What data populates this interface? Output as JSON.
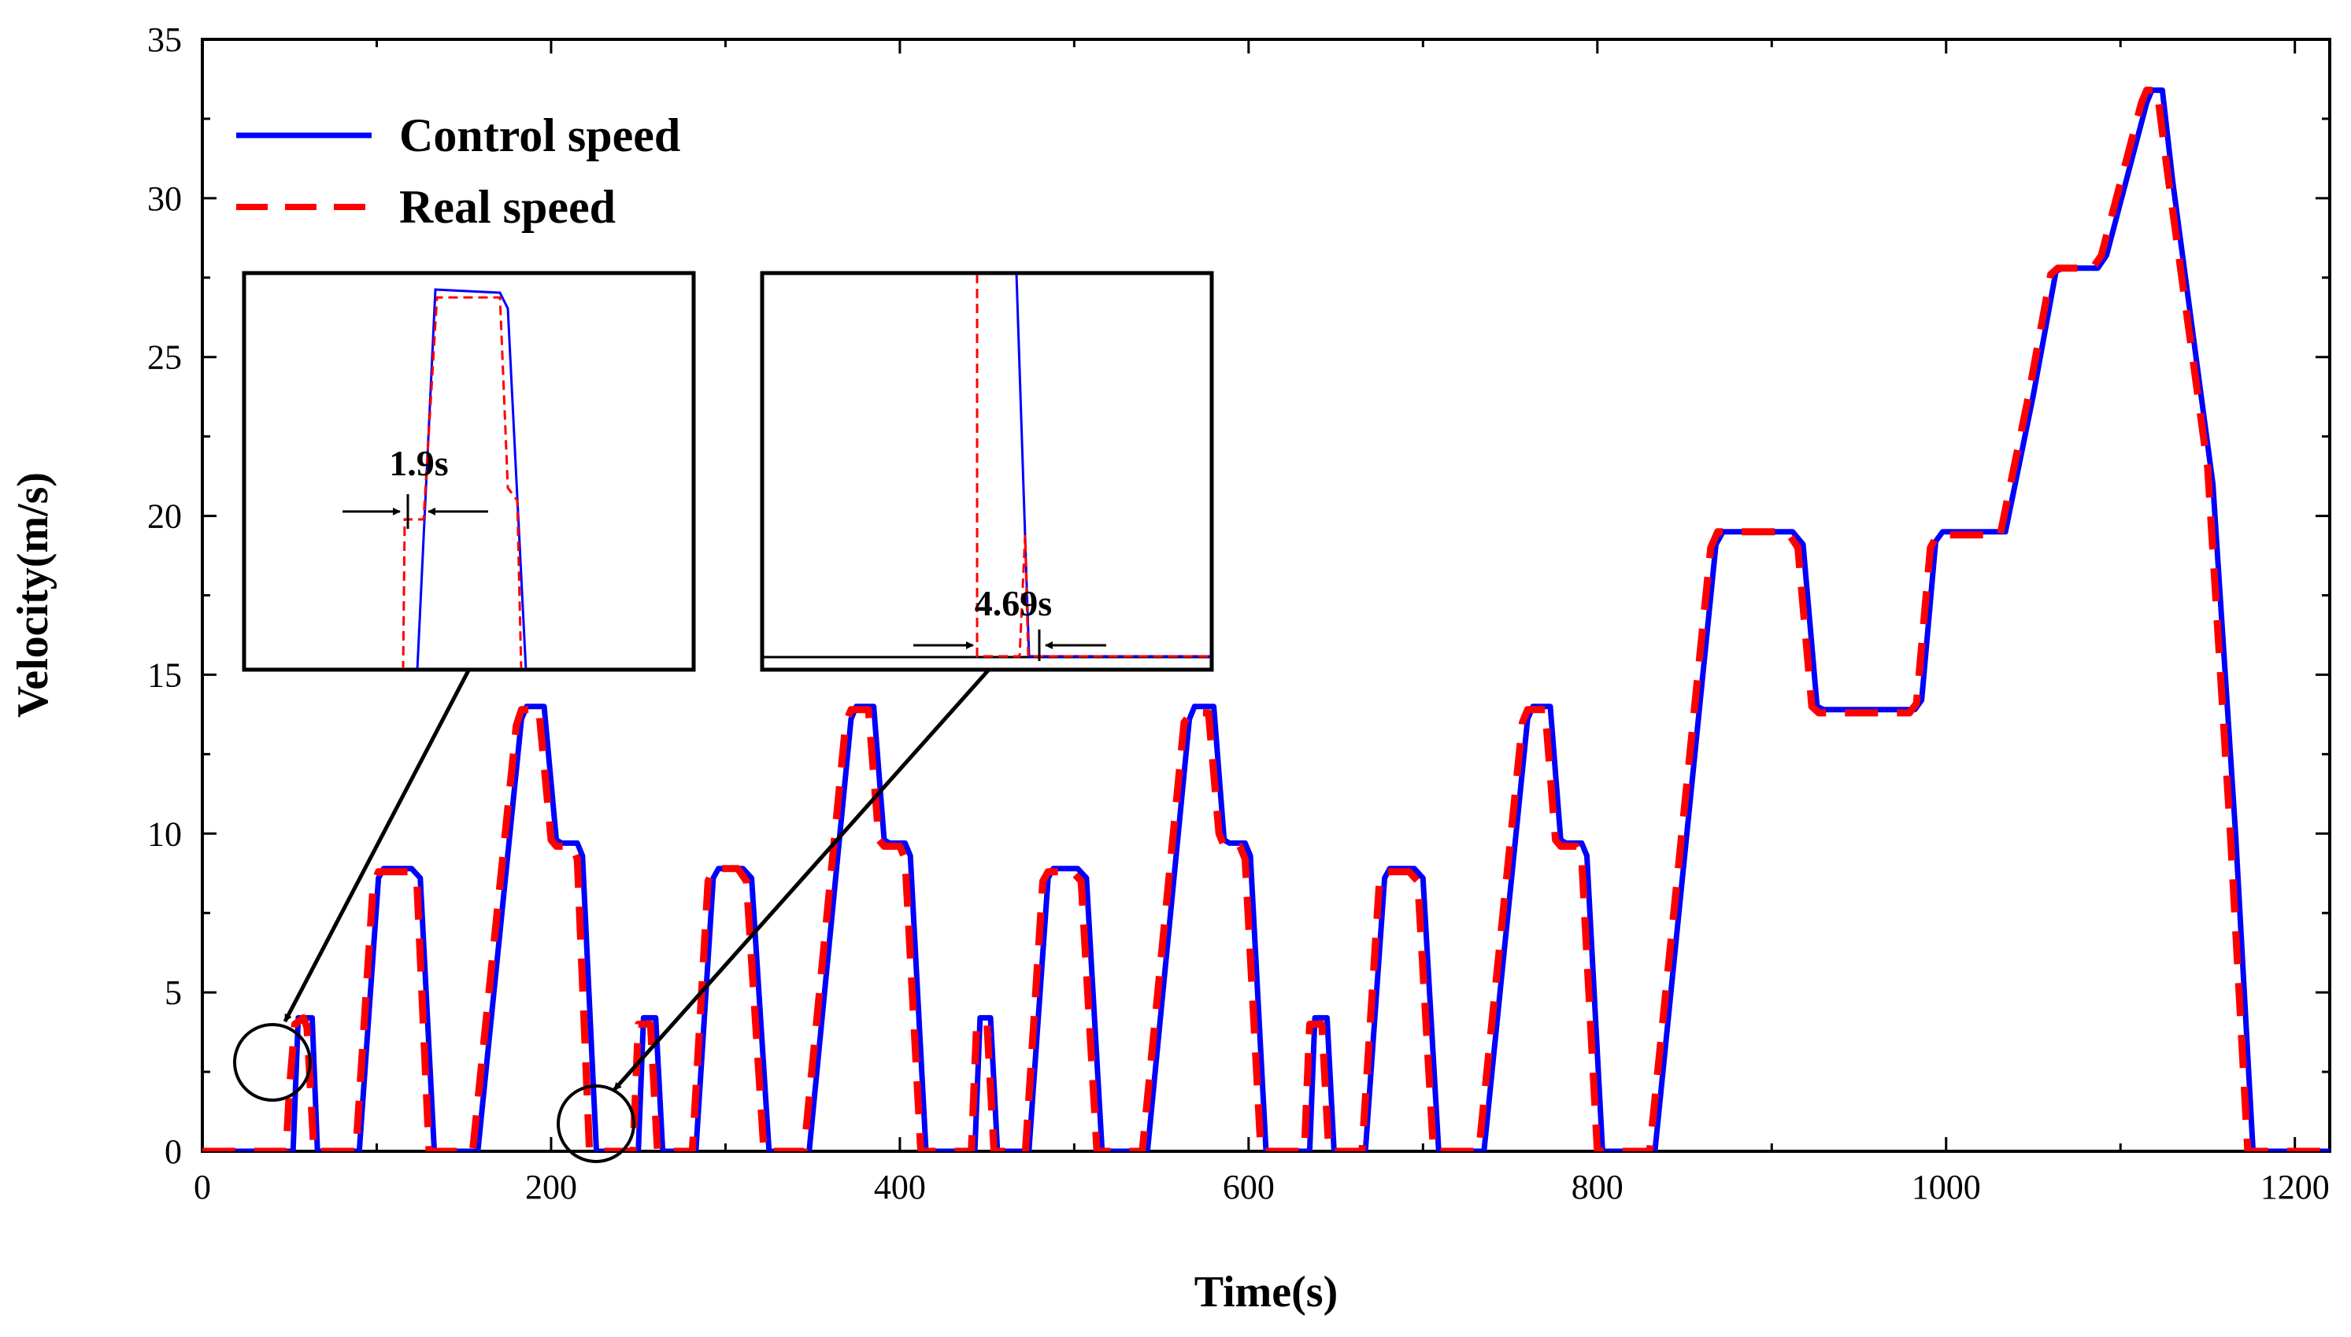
{
  "chart_data": {
    "type": "line",
    "title": "",
    "xlabel": "Time(s)",
    "ylabel": "Velocity(m/s)",
    "xlim": [
      0,
      1220
    ],
    "ylim": [
      0,
      35
    ],
    "xticks": [
      0,
      200,
      400,
      600,
      800,
      1000,
      1200
    ],
    "yticks": [
      0,
      5,
      10,
      15,
      20,
      25,
      30,
      35
    ],
    "grid": false,
    "legend_position": "top-left",
    "series": [
      {
        "name": "Control speed",
        "color": "#0000ff",
        "style": "solid",
        "points": [
          [
            0,
            0
          ],
          [
            52,
            0
          ],
          [
            55,
            4.2
          ],
          [
            63,
            4.2
          ],
          [
            66,
            0
          ],
          [
            90,
            0
          ],
          [
            101,
            8.6
          ],
          [
            104,
            8.9
          ],
          [
            120,
            8.9
          ],
          [
            125,
            8.6
          ],
          [
            133,
            0
          ],
          [
            158,
            0
          ],
          [
            183,
            13.6
          ],
          [
            186,
            14
          ],
          [
            196,
            14
          ],
          [
            203,
            9.8
          ],
          [
            206,
            9.7
          ],
          [
            215,
            9.7
          ],
          [
            218,
            9.3
          ],
          [
            226,
            0
          ],
          [
            250,
            0
          ],
          [
            253,
            4.2
          ],
          [
            260,
            4.2
          ],
          [
            264,
            0
          ],
          [
            283,
            0
          ],
          [
            293,
            8.6
          ],
          [
            296,
            8.9
          ],
          [
            310,
            8.9
          ],
          [
            315,
            8.6
          ],
          [
            325,
            0
          ],
          [
            348,
            0
          ],
          [
            372,
            13.6
          ],
          [
            375,
            14
          ],
          [
            385,
            14
          ],
          [
            391,
            9.8
          ],
          [
            394,
            9.7
          ],
          [
            403,
            9.7
          ],
          [
            406,
            9.3
          ],
          [
            415,
            0
          ],
          [
            443,
            0
          ],
          [
            446,
            4.2
          ],
          [
            452,
            4.2
          ],
          [
            456,
            0
          ],
          [
            474,
            0
          ],
          [
            485,
            8.6
          ],
          [
            488,
            8.9
          ],
          [
            502,
            8.9
          ],
          [
            507,
            8.6
          ],
          [
            516,
            0
          ],
          [
            542,
            0
          ],
          [
            566,
            13.6
          ],
          [
            569,
            14
          ],
          [
            580,
            14
          ],
          [
            586,
            9.8
          ],
          [
            589,
            9.7
          ],
          [
            598,
            9.7
          ],
          [
            601,
            9.3
          ],
          [
            610,
            0
          ],
          [
            635,
            0
          ],
          [
            638,
            4.2
          ],
          [
            645,
            4.2
          ],
          [
            649,
            0
          ],
          [
            667,
            0
          ],
          [
            678,
            8.6
          ],
          [
            681,
            8.9
          ],
          [
            695,
            8.9
          ],
          [
            700,
            8.6
          ],
          [
            709,
            0
          ],
          [
            735,
            0
          ],
          [
            760,
            13.6
          ],
          [
            763,
            14
          ],
          [
            773,
            14
          ],
          [
            779,
            9.8
          ],
          [
            782,
            9.7
          ],
          [
            791,
            9.7
          ],
          [
            794,
            9.3
          ],
          [
            803,
            0
          ],
          [
            833,
            0
          ],
          [
            868,
            19.1
          ],
          [
            872,
            19.5
          ],
          [
            912,
            19.5
          ],
          [
            918,
            19.1
          ],
          [
            926,
            14
          ],
          [
            930,
            13.9
          ],
          [
            982,
            13.9
          ],
          [
            986,
            14.2
          ],
          [
            994,
            19.2
          ],
          [
            998,
            19.5
          ],
          [
            1034,
            19.5
          ],
          [
            1050,
            23.8
          ],
          [
            1063,
            27.7
          ],
          [
            1067,
            27.8
          ],
          [
            1087,
            27.8
          ],
          [
            1092,
            28.2
          ],
          [
            1115,
            33
          ],
          [
            1118,
            33.4
          ],
          [
            1124,
            33.4
          ],
          [
            1130,
            30.5
          ],
          [
            1153,
            21
          ],
          [
            1166,
            10
          ],
          [
            1173,
            3
          ],
          [
            1176,
            0
          ],
          [
            1220,
            0
          ]
        ]
      },
      {
        "name": "Real speed",
        "color": "#ff0000",
        "style": "dashed",
        "points": [
          [
            0,
            0
          ],
          [
            48,
            0
          ],
          [
            50,
            2
          ],
          [
            53,
            4.0
          ],
          [
            58,
            4.2
          ],
          [
            60,
            3.9
          ],
          [
            64,
            0
          ],
          [
            88,
            0
          ],
          [
            98,
            8.4
          ],
          [
            101,
            8.8
          ],
          [
            118,
            8.8
          ],
          [
            123,
            8.5
          ],
          [
            130,
            0
          ],
          [
            155,
            0
          ],
          [
            180,
            13.4
          ],
          [
            183,
            13.9
          ],
          [
            193,
            13.9
          ],
          [
            200,
            9.8
          ],
          [
            203,
            9.6
          ],
          [
            212,
            9.6
          ],
          [
            215,
            9.2
          ],
          [
            222,
            0
          ],
          [
            247,
            0
          ],
          [
            250,
            4.0
          ],
          [
            257,
            4.0
          ],
          [
            261,
            0
          ],
          [
            281,
            0
          ],
          [
            290,
            8.5
          ],
          [
            293,
            8.9
          ],
          [
            307,
            8.9
          ],
          [
            312,
            8.5
          ],
          [
            322,
            0
          ],
          [
            345,
            0
          ],
          [
            369,
            13.5
          ],
          [
            372,
            13.9
          ],
          [
            382,
            13.9
          ],
          [
            388,
            9.8
          ],
          [
            391,
            9.6
          ],
          [
            400,
            9.6
          ],
          [
            403,
            9.2
          ],
          [
            412,
            0
          ],
          [
            441,
            0
          ],
          [
            444,
            4.0
          ],
          [
            450,
            4.0
          ],
          [
            454,
            0
          ],
          [
            472,
            0
          ],
          [
            482,
            8.5
          ],
          [
            485,
            8.8
          ],
          [
            499,
            8.8
          ],
          [
            504,
            8.5
          ],
          [
            513,
            0
          ],
          [
            539,
            0
          ],
          [
            563,
            13.5
          ],
          [
            567,
            13.8
          ],
          [
            577,
            13.8
          ],
          [
            583,
            10
          ],
          [
            586,
            9.6
          ],
          [
            595,
            9.6
          ],
          [
            598,
            9.2
          ],
          [
            607,
            0
          ],
          [
            632,
            0
          ],
          [
            635,
            4.0
          ],
          [
            642,
            4.0
          ],
          [
            646,
            0
          ],
          [
            665,
            0
          ],
          [
            675,
            8.5
          ],
          [
            678,
            8.8
          ],
          [
            692,
            8.8
          ],
          [
            697,
            8.5
          ],
          [
            706,
            0
          ],
          [
            732,
            0
          ],
          [
            757,
            13.5
          ],
          [
            760,
            13.9
          ],
          [
            770,
            13.9
          ],
          [
            776,
            9.8
          ],
          [
            779,
            9.6
          ],
          [
            788,
            9.6
          ],
          [
            791,
            9.2
          ],
          [
            800,
            0
          ],
          [
            830,
            0
          ],
          [
            865,
            19.0
          ],
          [
            869,
            19.5
          ],
          [
            909,
            19.5
          ],
          [
            915,
            19.0
          ],
          [
            923,
            14
          ],
          [
            927,
            13.8
          ],
          [
            979,
            13.8
          ],
          [
            983,
            14.1
          ],
          [
            991,
            19.0
          ],
          [
            995,
            19.4
          ],
          [
            1031,
            19.4
          ],
          [
            1047,
            23.7
          ],
          [
            1060,
            27.6
          ],
          [
            1064,
            27.8
          ],
          [
            1084,
            27.8
          ],
          [
            1089,
            28.2
          ],
          [
            1112,
            33
          ],
          [
            1115,
            33.4
          ],
          [
            1121,
            33.4
          ],
          [
            1127,
            30.8
          ],
          [
            1150,
            21.5
          ],
          [
            1163,
            10
          ],
          [
            1170,
            3
          ],
          [
            1173,
            0
          ],
          [
            1220,
            0
          ]
        ]
      }
    ],
    "annotations": [
      {
        "label": "1.9s",
        "target_x": 42,
        "target_y": 2.7
      },
      {
        "label": "4.69s",
        "target_x": 227,
        "target_y": 1.0
      }
    ]
  }
}
